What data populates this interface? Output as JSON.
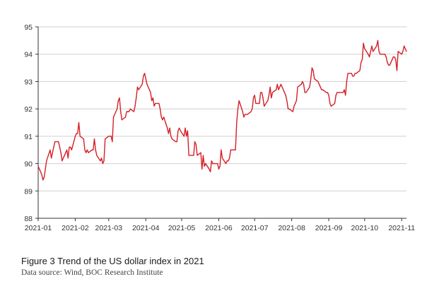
{
  "caption": {
    "title": "Figure 3 Trend of the US dollar index in 2021",
    "source": "Data source: Wind, BOC Research Institute"
  },
  "chart_data": {
    "type": "line",
    "title": "",
    "xlabel": "",
    "ylabel": "",
    "ylim": [
      88,
      95
    ],
    "yticks": [
      "88",
      "89",
      "90",
      "91",
      "92",
      "93",
      "94",
      "95"
    ],
    "xticks": [
      "2021-01",
      "2021-02",
      "2021-03",
      "2021-04",
      "2021-05",
      "2021-06",
      "2021-07",
      "2021-08",
      "2021-09",
      "2021-10",
      "2021-11"
    ],
    "xlim": [
      "2021-01-01",
      "2021-11-05"
    ],
    "grid": "horizontal",
    "line_color": "#d42027",
    "series": [
      {
        "x": [
          "2021-01-01",
          "2021-01-04",
          "2021-01-05",
          "2021-01-06",
          "2021-01-07",
          "2021-01-08",
          "2021-01-11",
          "2021-01-12",
          "2021-01-13",
          "2021-01-14",
          "2021-01-15",
          "2021-01-18",
          "2021-01-19",
          "2021-01-20",
          "2021-01-21",
          "2021-01-22",
          "2021-01-25",
          "2021-01-26",
          "2021-01-27",
          "2021-01-28",
          "2021-01-29",
          "2021-02-01",
          "2021-02-02",
          "2021-02-03",
          "2021-02-04",
          "2021-02-05",
          "2021-02-08",
          "2021-02-09",
          "2021-02-10",
          "2021-02-11",
          "2021-02-12",
          "2021-02-15",
          "2021-02-16",
          "2021-02-17",
          "2021-02-18",
          "2021-02-19",
          "2021-02-22",
          "2021-02-23",
          "2021-02-24",
          "2021-02-25",
          "2021-02-26",
          "2021-03-01",
          "2021-03-02",
          "2021-03-03",
          "2021-03-04",
          "2021-03-05",
          "2021-03-08",
          "2021-03-09",
          "2021-03-10",
          "2021-03-11",
          "2021-03-12",
          "2021-03-15",
          "2021-03-16",
          "2021-03-17",
          "2021-03-18",
          "2021-03-19",
          "2021-03-22",
          "2021-03-23",
          "2021-03-24",
          "2021-03-25",
          "2021-03-26",
          "2021-03-29",
          "2021-03-30",
          "2021-03-31",
          "2021-04-01",
          "2021-04-02",
          "2021-04-05",
          "2021-04-06",
          "2021-04-07",
          "2021-04-08",
          "2021-04-09",
          "2021-04-12",
          "2021-04-13",
          "2021-04-14",
          "2021-04-15",
          "2021-04-16",
          "2021-04-19",
          "2021-04-20",
          "2021-04-21",
          "2021-04-22",
          "2021-04-23",
          "2021-04-26",
          "2021-04-27",
          "2021-04-28",
          "2021-04-29",
          "2021-04-30",
          "2021-05-03",
          "2021-05-04",
          "2021-05-05",
          "2021-05-06",
          "2021-05-07",
          "2021-05-10",
          "2021-05-11",
          "2021-05-12",
          "2021-05-13",
          "2021-05-14",
          "2021-05-17",
          "2021-05-18",
          "2021-05-19",
          "2021-05-20",
          "2021-05-21",
          "2021-05-24",
          "2021-05-25",
          "2021-05-26",
          "2021-05-27",
          "2021-05-28",
          "2021-05-31",
          "2021-06-01",
          "2021-06-02",
          "2021-06-03",
          "2021-06-04",
          "2021-06-07",
          "2021-06-08",
          "2021-06-09",
          "2021-06-10",
          "2021-06-11",
          "2021-06-14",
          "2021-06-15",
          "2021-06-16",
          "2021-06-17",
          "2021-06-18",
          "2021-06-21",
          "2021-06-22",
          "2021-06-23",
          "2021-06-24",
          "2021-06-25",
          "2021-06-28",
          "2021-06-29",
          "2021-06-30",
          "2021-07-01",
          "2021-07-02",
          "2021-07-05",
          "2021-07-06",
          "2021-07-07",
          "2021-07-08",
          "2021-07-09",
          "2021-07-12",
          "2021-07-13",
          "2021-07-14",
          "2021-07-15",
          "2021-07-16",
          "2021-07-19",
          "2021-07-20",
          "2021-07-21",
          "2021-07-22",
          "2021-07-23",
          "2021-07-26",
          "2021-07-27",
          "2021-07-28",
          "2021-07-29",
          "2021-07-30",
          "2021-08-02",
          "2021-08-03",
          "2021-08-04",
          "2021-08-05",
          "2021-08-06",
          "2021-08-09",
          "2021-08-10",
          "2021-08-11",
          "2021-08-12",
          "2021-08-13",
          "2021-08-16",
          "2021-08-17",
          "2021-08-18",
          "2021-08-19",
          "2021-08-20",
          "2021-08-23",
          "2021-08-24",
          "2021-08-25",
          "2021-08-26",
          "2021-08-27",
          "2021-08-30",
          "2021-08-31",
          "2021-09-01",
          "2021-09-02",
          "2021-09-03",
          "2021-09-06",
          "2021-09-07",
          "2021-09-08",
          "2021-09-09",
          "2021-09-10",
          "2021-09-13",
          "2021-09-14",
          "2021-09-15",
          "2021-09-16",
          "2021-09-17",
          "2021-09-20",
          "2021-09-21",
          "2021-09-22",
          "2021-09-23",
          "2021-09-24",
          "2021-09-27",
          "2021-09-28",
          "2021-09-29",
          "2021-09-30",
          "2021-10-01",
          "2021-10-04",
          "2021-10-05",
          "2021-10-06",
          "2021-10-07",
          "2021-10-08",
          "2021-10-11",
          "2021-10-12",
          "2021-10-13",
          "2021-10-14",
          "2021-10-15",
          "2021-10-18",
          "2021-10-19",
          "2021-10-20",
          "2021-10-21",
          "2021-10-22",
          "2021-10-25",
          "2021-10-26",
          "2021-10-27",
          "2021-10-28",
          "2021-10-29",
          "2021-11-01",
          "2021-11-02",
          "2021-11-03",
          "2021-11-04",
          "2021-11-05"
        ],
        "y": [
          89.9,
          89.6,
          89.4,
          89.5,
          89.8,
          90.1,
          90.5,
          90.2,
          90.4,
          90.6,
          90.8,
          90.8,
          90.6,
          90.4,
          90.1,
          90.2,
          90.5,
          90.2,
          90.6,
          90.6,
          90.5,
          91.0,
          91.1,
          91.1,
          91.5,
          91.0,
          90.9,
          90.5,
          90.4,
          90.5,
          90.4,
          90.5,
          90.5,
          90.9,
          90.5,
          90.3,
          90.1,
          90.2,
          90.0,
          90.1,
          90.9,
          91.0,
          91.0,
          91.0,
          90.8,
          91.7,
          92.0,
          92.3,
          92.4,
          91.9,
          91.6,
          91.7,
          91.9,
          91.9,
          91.9,
          92.0,
          91.9,
          92.1,
          92.4,
          92.8,
          92.7,
          92.9,
          93.2,
          93.3,
          93.1,
          92.9,
          92.6,
          92.3,
          92.4,
          92.1,
          92.2,
          92.2,
          92.0,
          91.7,
          91.6,
          91.7,
          91.3,
          91.1,
          91.3,
          91.0,
          90.9,
          90.8,
          90.8,
          91.2,
          91.3,
          91.2,
          91.0,
          91.3,
          91.0,
          91.2,
          90.3,
          90.3,
          90.3,
          90.8,
          90.7,
          90.3,
          90.4,
          89.8,
          90.3,
          89.9,
          90.0,
          89.8,
          89.7,
          90.1,
          90.0,
          90.0,
          90.0,
          89.8,
          89.9,
          90.5,
          90.2,
          90.0,
          90.1,
          90.1,
          90.2,
          90.5,
          90.5,
          90.5,
          91.5,
          92.0,
          92.3,
          91.9,
          91.7,
          91.8,
          91.8,
          91.8,
          91.9,
          92.0,
          92.4,
          92.5,
          92.2,
          92.2,
          92.6,
          92.6,
          92.4,
          92.1,
          92.3,
          92.5,
          92.8,
          92.4,
          92.6,
          92.7,
          92.9,
          92.7,
          92.8,
          92.9,
          92.6,
          92.5,
          92.3,
          92.0,
          92.0,
          91.9,
          92.1,
          92.2,
          92.3,
          92.8,
          92.9,
          93.0,
          92.9,
          92.6,
          92.6,
          92.8,
          93.1,
          93.5,
          93.4,
          93.1,
          93.0,
          92.9,
          92.8,
          92.7,
          92.7,
          92.6,
          92.6,
          92.5,
          92.2,
          92.1,
          92.2,
          92.5,
          92.6,
          92.6,
          92.6,
          92.6,
          92.7,
          92.5,
          93.0,
          93.3,
          93.3,
          93.2,
          93.2,
          93.3,
          93.3,
          93.4,
          93.7,
          93.8,
          94.4,
          94.2,
          94.0,
          93.9,
          94.1,
          94.3,
          94.1,
          94.3,
          94.5,
          94.1,
          94.0,
          94.0,
          94.0,
          93.9,
          93.7,
          93.6,
          93.6,
          93.9,
          93.9,
          93.8,
          93.4,
          94.1,
          94.0,
          94.1,
          94.3,
          94.2,
          94.1
        ]
      }
    ]
  }
}
